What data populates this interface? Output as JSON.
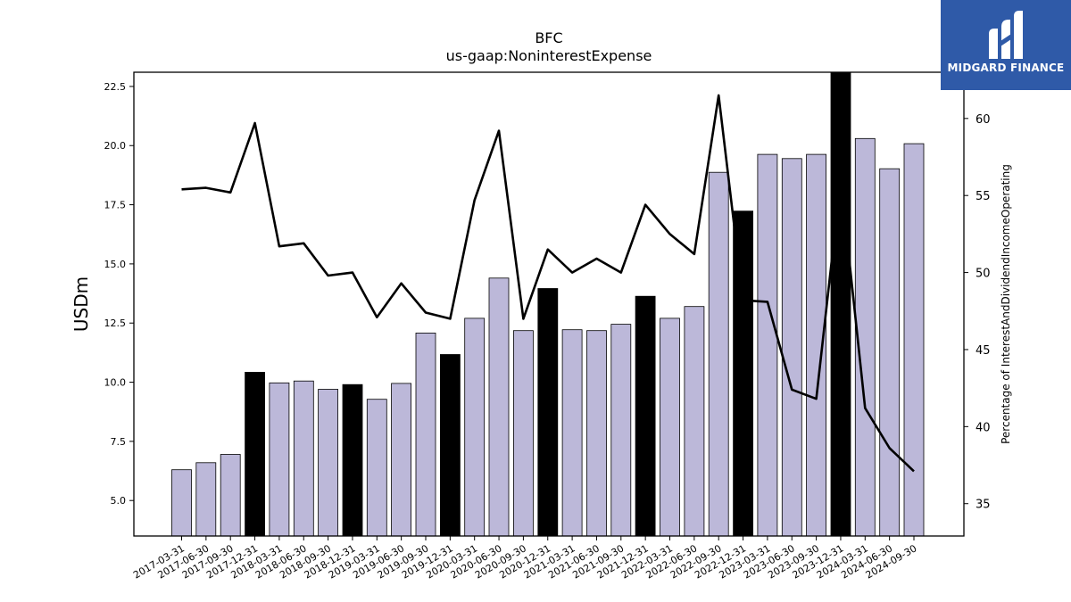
{
  "chart_data": {
    "type": "bar",
    "title": "BFC",
    "subtitle": "us-gaap:NoninterestExpense",
    "ylabel": "USDm",
    "y2label": "Percentage of InterestAndDividendIncomeOperating",
    "ylim": [
      3.5,
      23.1
    ],
    "y2lim": [
      32.9,
      63.0
    ],
    "yticks": [
      "5.0",
      "7.5",
      "10.0",
      "12.5",
      "15.0",
      "17.5",
      "20.0",
      "22.5"
    ],
    "y2ticks": [
      "35",
      "40",
      "45",
      "50",
      "55",
      "60"
    ],
    "categories": [
      "2017-03-31",
      "2017-06-30",
      "2017-09-30",
      "2017-12-31",
      "2018-03-31",
      "2018-06-30",
      "2018-09-30",
      "2018-12-31",
      "2019-03-31",
      "2019-06-30",
      "2019-09-30",
      "2019-12-31",
      "2020-03-31",
      "2020-06-30",
      "2020-09-30",
      "2020-12-31",
      "2021-03-31",
      "2021-06-30",
      "2021-09-30",
      "2021-12-31",
      "2022-03-31",
      "2022-06-30",
      "2022-09-30",
      "2022-12-31",
      "2023-03-31",
      "2023-06-30",
      "2023-09-30",
      "2023-12-31",
      "2024-03-31",
      "2024-06-30",
      "2024-09-30"
    ],
    "series": [
      {
        "kind": "bar",
        "axis": "left",
        "values": [
          6.3,
          6.6,
          6.95,
          10.42,
          9.97,
          10.05,
          9.7,
          9.9,
          9.28,
          9.95,
          12.08,
          11.17,
          12.7,
          14.4,
          12.18,
          13.96,
          12.22,
          12.18,
          12.45,
          13.63,
          12.7,
          13.2,
          18.87,
          17.23,
          19.63,
          19.45,
          19.63,
          23.1,
          20.3,
          19.02,
          20.08
        ]
      },
      {
        "kind": "line",
        "axis": "right",
        "values": [
          55.4,
          55.5,
          55.2,
          59.7,
          51.7,
          51.9,
          49.8,
          50.0,
          47.1,
          49.3,
          47.4,
          47.0,
          54.7,
          59.2,
          47.0,
          51.5,
          50.0,
          50.9,
          50.0,
          54.4,
          52.5,
          51.2,
          61.5,
          48.2,
          48.1,
          42.4,
          41.8,
          56.0,
          41.2,
          38.6,
          37.1
        ]
      }
    ],
    "highlight_indices": [
      3,
      7,
      11,
      15,
      19,
      23,
      27
    ],
    "colors": {
      "bar": "#bcb8d9",
      "highlight": "#000000",
      "line": "#000000"
    },
    "grid": false,
    "legend": "none"
  },
  "logo": {
    "text": "MIDGARD FINANCE",
    "bg": "#2f5aa8"
  }
}
